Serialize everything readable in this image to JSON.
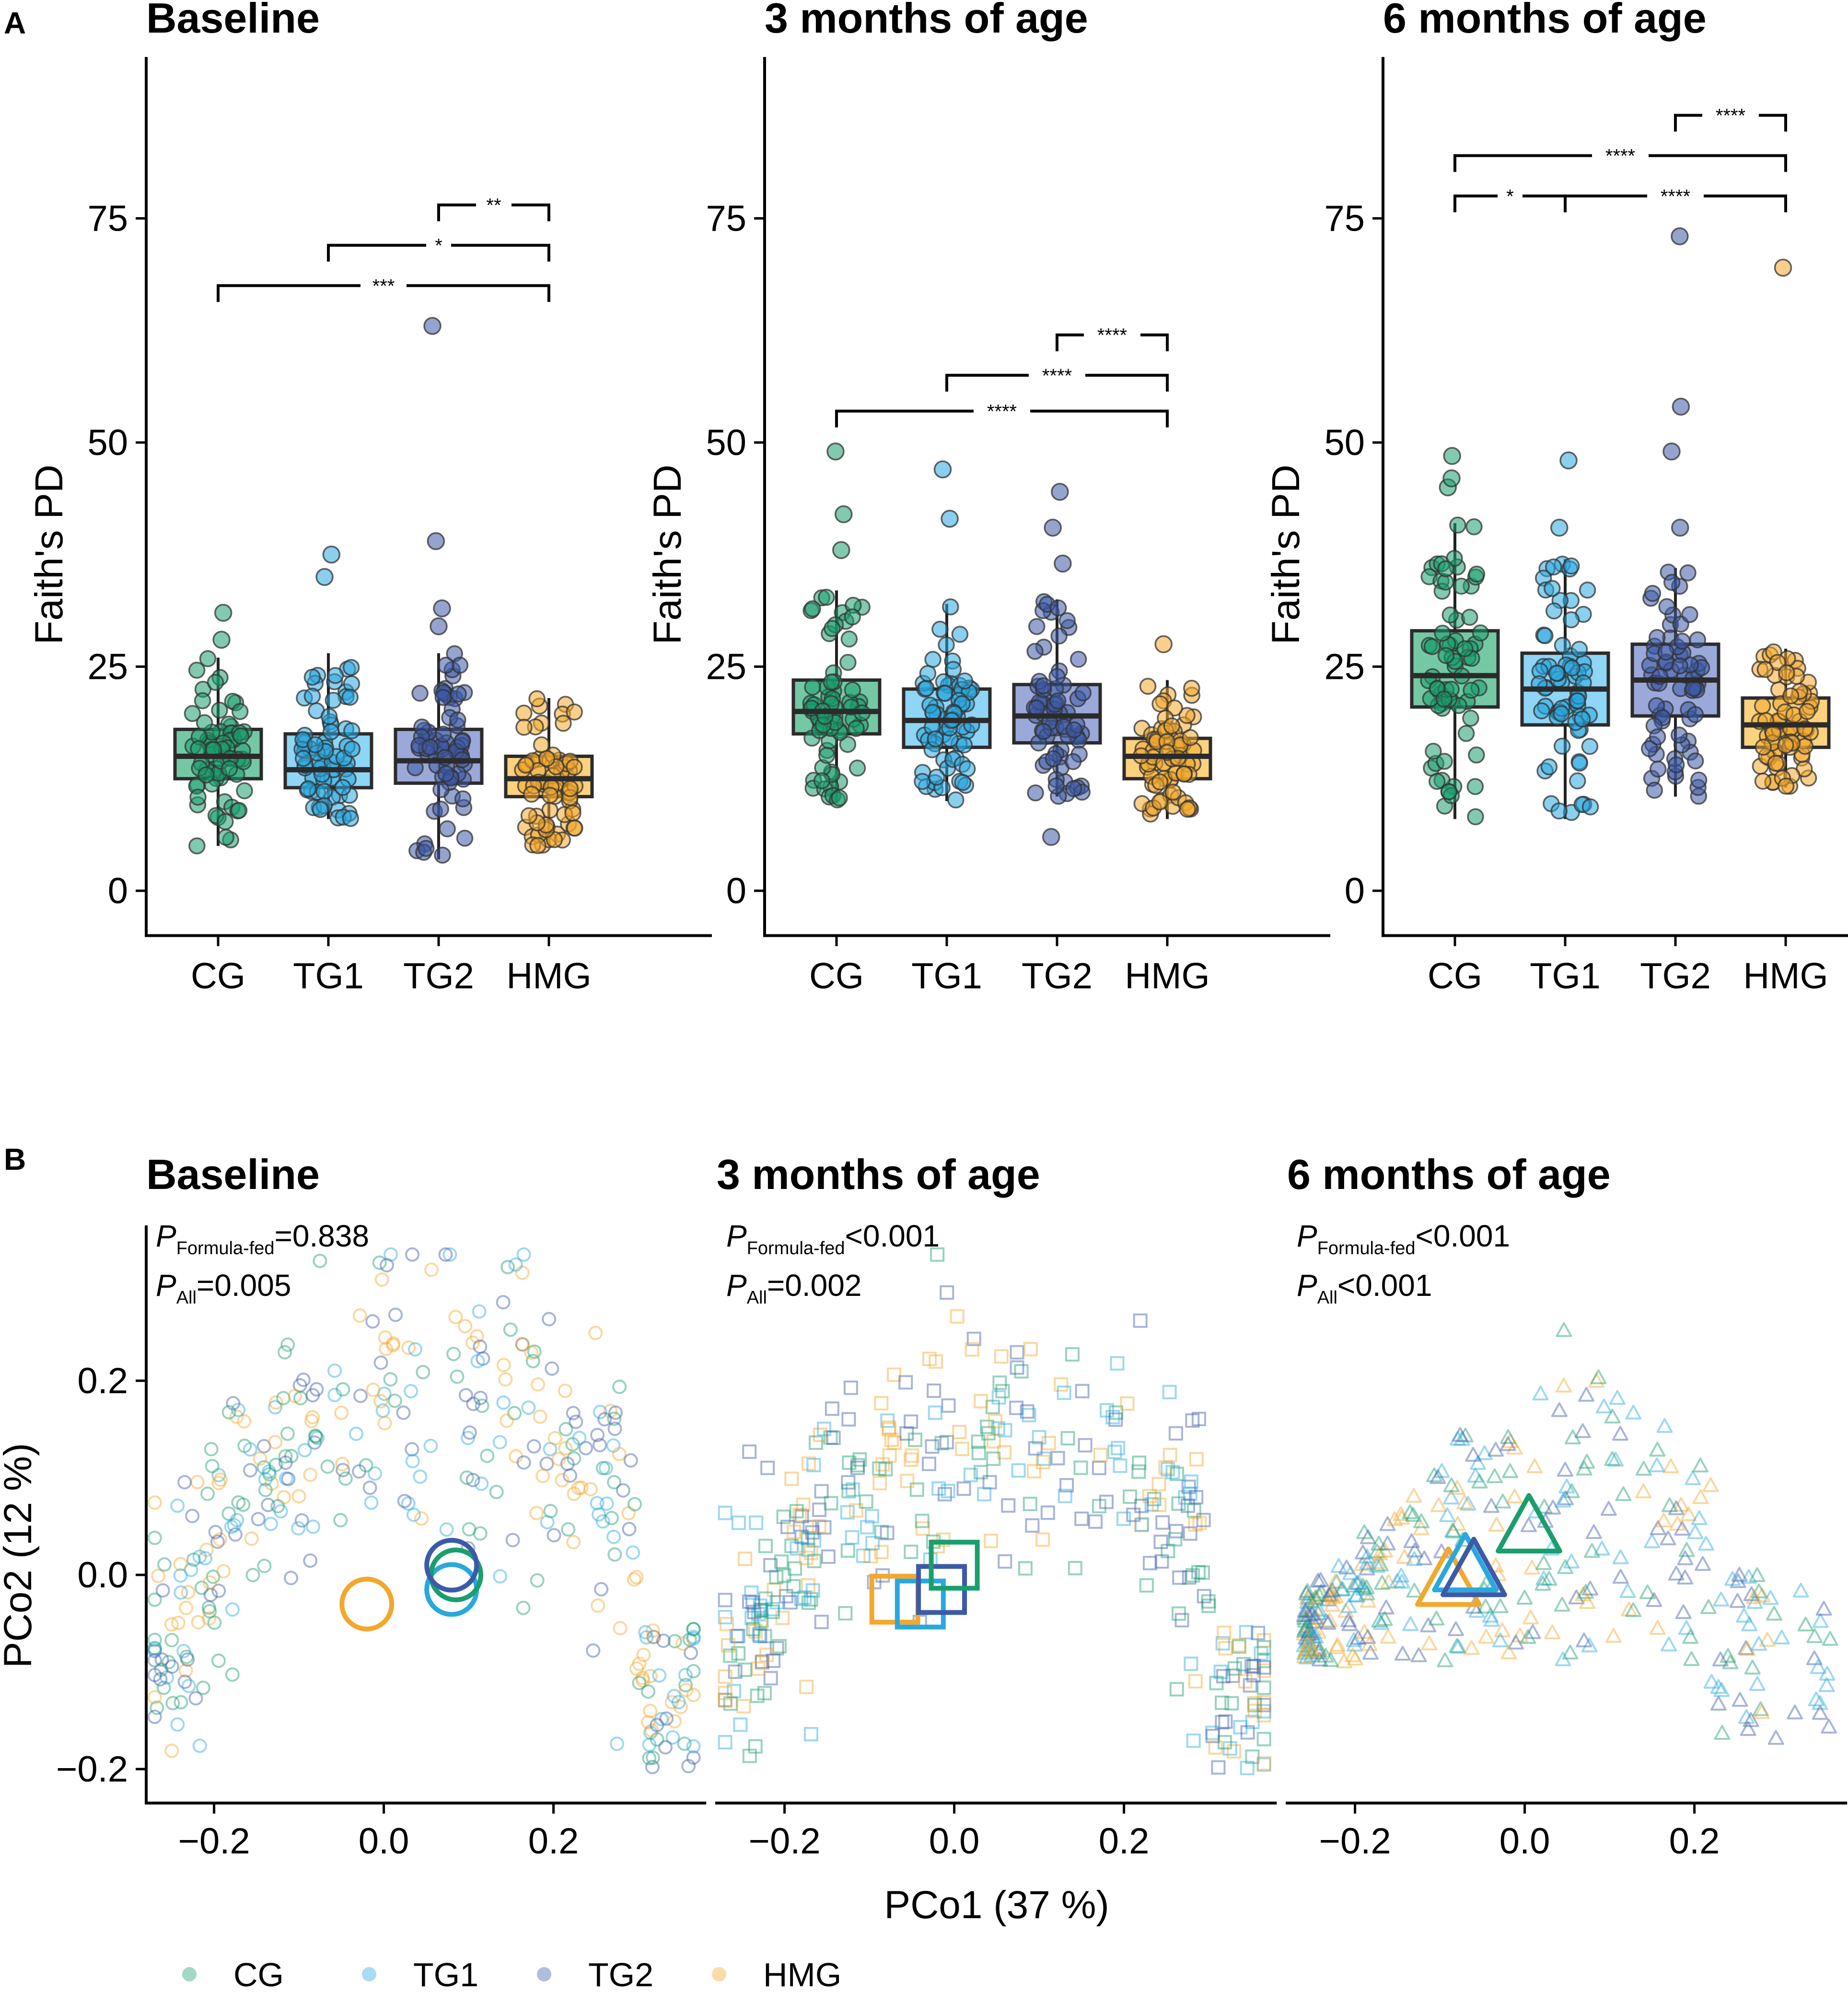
{
  "panel_labels": {
    "a": "A",
    "b": "B"
  },
  "colors": {
    "CG": "#1a9e6e",
    "TG1": "#29a8e0",
    "TG2": "#3d5aa8",
    "HMG": "#f2a82c"
  },
  "fills": {
    "CG": "#74c9a4",
    "TG1": "#8fd5f5",
    "TG2": "#9aa9d9",
    "HMG": "#fcd27f"
  },
  "legend": {
    "items": [
      "CG",
      "TG1",
      "TG2",
      "HMG"
    ]
  },
  "chart_data": [
    {
      "type": "box",
      "title": "Baseline",
      "ylabel": "Faith's PD",
      "ylim": [
        -5,
        93
      ],
      "yticks": [
        0,
        25,
        50,
        75
      ],
      "categories": [
        "CG",
        "TG1",
        "TG2",
        "HMG"
      ],
      "boxes": [
        {
          "group": "CG",
          "q1": 12.5,
          "median": 15,
          "q3": 18,
          "whisker_low": 5,
          "whisker_high": 26,
          "outliers_high": [
            28,
            31
          ],
          "outliers_low": []
        },
        {
          "group": "TG1",
          "q1": 11.5,
          "median": 13.5,
          "q3": 17.5,
          "whisker_low": 8,
          "whisker_high": 26.5,
          "outliers_high": [
            35,
            37.5
          ],
          "outliers_low": []
        },
        {
          "group": "TG2",
          "q1": 12,
          "median": 14.5,
          "q3": 18,
          "whisker_low": 3.5,
          "whisker_high": 26.5,
          "outliers_high": [
            29.5,
            31.5,
            39,
            63
          ],
          "outliers_low": []
        },
        {
          "group": "HMG",
          "q1": 10.5,
          "median": 12.5,
          "q3": 15,
          "whisker_low": 5,
          "whisker_high": 21.5,
          "outliers_high": [],
          "outliers_low": []
        }
      ],
      "significance": [
        {
          "from": "TG2",
          "to": "HMG",
          "label": "**",
          "y": 76.5
        },
        {
          "from": "TG1",
          "to": "HMG",
          "label": "*",
          "y": 72
        },
        {
          "from": "CG",
          "to": "HMG",
          "label": "***",
          "y": 67.5
        }
      ]
    },
    {
      "type": "box",
      "title": "3 months of age",
      "ylabel": "Faith's PD",
      "ylim": [
        -5,
        93
      ],
      "yticks": [
        0,
        25,
        50,
        75
      ],
      "categories": [
        "CG",
        "TG1",
        "TG2",
        "HMG"
      ],
      "boxes": [
        {
          "group": "CG",
          "q1": 17.5,
          "median": 20,
          "q3": 23.5,
          "whisker_low": 10,
          "whisker_high": 33.5,
          "outliers_high": [
            38,
            42,
            49
          ],
          "outliers_low": []
        },
        {
          "group": "TG1",
          "q1": 16,
          "median": 19,
          "q3": 22.5,
          "whisker_low": 10,
          "whisker_high": 32,
          "outliers_high": [
            41.5,
            47
          ],
          "outliers_low": []
        },
        {
          "group": "TG2",
          "q1": 16.5,
          "median": 19.5,
          "q3": 23,
          "whisker_low": 10.5,
          "whisker_high": 32.5,
          "outliers_high": [
            36.5,
            40.5,
            44.5
          ],
          "outliers_low": [
            6
          ]
        },
        {
          "group": "HMG",
          "q1": 12.5,
          "median": 15,
          "q3": 17,
          "whisker_low": 8,
          "whisker_high": 23.5,
          "outliers_high": [
            27.5
          ],
          "outliers_low": []
        }
      ],
      "significance": [
        {
          "from": "TG2",
          "to": "HMG",
          "label": "****",
          "y": 62
        },
        {
          "from": "TG1",
          "to": "HMG",
          "label": "****",
          "y": 57.5
        },
        {
          "from": "CG",
          "to": "HMG",
          "label": "****",
          "y": 53.5
        }
      ]
    },
    {
      "type": "box",
      "title": "6 months of age",
      "ylabel": "Faith's PD",
      "ylim": [
        -5,
        93
      ],
      "yticks": [
        0,
        25,
        50,
        75
      ],
      "categories": [
        "CG",
        "TG1",
        "TG2",
        "HMG"
      ],
      "boxes": [
        {
          "group": "CG",
          "q1": 20.5,
          "median": 24,
          "q3": 29,
          "whisker_low": 8,
          "whisker_high": 41,
          "outliers_high": [
            45,
            46,
            48.5
          ],
          "outliers_low": []
        },
        {
          "group": "TG1",
          "q1": 18.5,
          "median": 22.5,
          "q3": 26.5,
          "whisker_low": 8,
          "whisker_high": 37,
          "outliers_high": [
            40.5,
            48
          ],
          "outliers_low": []
        },
        {
          "group": "TG2",
          "q1": 19.5,
          "median": 23.5,
          "q3": 27.5,
          "whisker_low": 10.5,
          "whisker_high": 36,
          "outliers_high": [
            40.5,
            49,
            54,
            73
          ],
          "outliers_low": []
        },
        {
          "group": "HMG",
          "q1": 16,
          "median": 18.5,
          "q3": 21.5,
          "whisker_low": 11.5,
          "whisker_high": 27,
          "outliers_high": [
            69.5
          ],
          "outliers_low": []
        }
      ],
      "significance": [
        {
          "from": "TG2",
          "to": "HMG",
          "label": "****",
          "y": 86.5
        },
        {
          "from": "CG",
          "to": "HMG",
          "label": "****",
          "y": 82
        },
        {
          "from": "CG",
          "to": "TG1",
          "label": "*",
          "y": 77.5
        },
        {
          "from": "TG1",
          "to": "HMG",
          "label": "****",
          "y": 77.5
        }
      ]
    },
    {
      "type": "scatter",
      "title": "Baseline",
      "marker": "circle",
      "xlim": [
        -0.28,
        0.38
      ],
      "ylim": [
        -0.235,
        0.36
      ],
      "xticks": [
        -0.2,
        0.0,
        0.2
      ],
      "yticks": [
        -0.2,
        0.0,
        0.2
      ],
      "xlabel": "PCo1 (37 %)",
      "ylabel": "PCo2 (12 %)",
      "stats": [
        {
          "name": "P",
          "sub": "Formula-fed",
          "op": "=",
          "value": "0.838"
        },
        {
          "name": "P",
          "sub": "All",
          "op": "=",
          "value": "0.005"
        }
      ],
      "centroids": [
        {
          "group": "HMG",
          "x": -0.02,
          "y": -0.03
        },
        {
          "group": "TG1",
          "x": 0.08,
          "y": -0.015
        },
        {
          "group": "CG",
          "x": 0.085,
          "y": 0.0
        },
        {
          "group": "TG2",
          "x": 0.08,
          "y": 0.01
        }
      ]
    },
    {
      "type": "scatter",
      "title": "3 months of age",
      "marker": "square",
      "xlim": [
        -0.28,
        0.38
      ],
      "ylim": [
        -0.235,
        0.36
      ],
      "xticks": [
        -0.2,
        0.0,
        0.2
      ],
      "yticks": [
        -0.2,
        0.0,
        0.2
      ],
      "xlabel": "PCo1 (37 %)",
      "ylabel": "PCo2 (12 %)",
      "stats": [
        {
          "name": "P",
          "sub": "Formula-fed",
          "op": "<",
          "value": "0.001"
        },
        {
          "name": "P",
          "sub": "All",
          "op": "=",
          "value": "0.002"
        }
      ],
      "centroids": [
        {
          "group": "HMG",
          "x": -0.07,
          "y": -0.025
        },
        {
          "group": "TG1",
          "x": -0.04,
          "y": -0.03
        },
        {
          "group": "TG2",
          "x": -0.015,
          "y": -0.015
        },
        {
          "group": "CG",
          "x": 0.0,
          "y": 0.01
        }
      ]
    },
    {
      "type": "scatter",
      "title": "6 months of age",
      "marker": "triangle",
      "xlim": [
        -0.28,
        0.38
      ],
      "ylim": [
        -0.235,
        0.36
      ],
      "xticks": [
        -0.2,
        0.0,
        0.2
      ],
      "yticks": [
        -0.2,
        0.0,
        0.2
      ],
      "xlabel": "PCo1 (37 %)",
      "ylabel": "PCo2 (12 %)",
      "stats": [
        {
          "name": "P",
          "sub": "Formula-fed",
          "op": "<",
          "value": "0.001"
        },
        {
          "name": "P",
          "sub": "All",
          "op": "<",
          "value": "0.001"
        }
      ],
      "centroids": [
        {
          "group": "HMG",
          "x": -0.09,
          "y": -0.005
        },
        {
          "group": "TG1",
          "x": -0.07,
          "y": 0.01
        },
        {
          "group": "TG2",
          "x": -0.06,
          "y": 0.005
        },
        {
          "group": "CG",
          "x": 0.005,
          "y": 0.05
        }
      ]
    }
  ]
}
